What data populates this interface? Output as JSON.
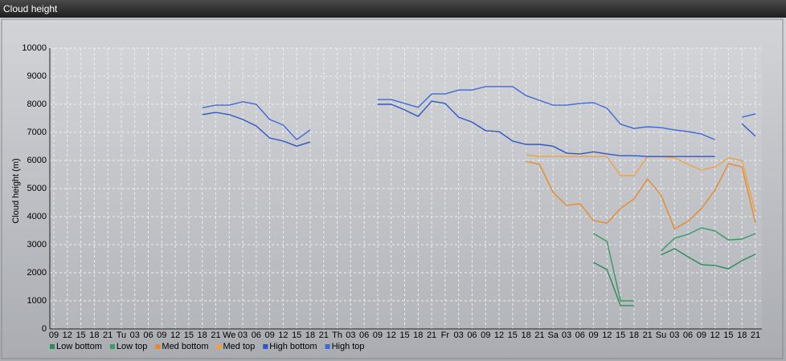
{
  "chart_data": {
    "type": "line",
    "title": "Cloud height",
    "y_label": "Cloud height (m)",
    "categories": [
      "09",
      "12",
      "15",
      "18",
      "21",
      "Tu",
      "03",
      "06",
      "09",
      "12",
      "15",
      "18",
      "21",
      "We",
      "03",
      "06",
      "09",
      "12",
      "15",
      "18",
      "21",
      "Th",
      "03",
      "06",
      "09",
      "12",
      "15",
      "18",
      "21",
      "Fr",
      "03",
      "06",
      "09",
      "12",
      "15",
      "18",
      "21",
      "Sa",
      "03",
      "06",
      "09",
      "12",
      "15",
      "18",
      "21",
      "Su",
      "03",
      "06",
      "09",
      "12",
      "15",
      "18",
      "21"
    ],
    "ylim": [
      0,
      10000
    ],
    "yticks": [
      0,
      1000,
      2000,
      3000,
      4000,
      5000,
      6000,
      7000,
      8000,
      9000,
      10000
    ],
    "grid": true,
    "series": [
      {
        "name": "Low bottom",
        "color": "#2f8a5a",
        "values": [
          null,
          null,
          null,
          null,
          null,
          null,
          null,
          null,
          null,
          null,
          null,
          null,
          null,
          null,
          null,
          null,
          null,
          null,
          null,
          null,
          null,
          null,
          null,
          null,
          null,
          null,
          null,
          null,
          null,
          null,
          null,
          null,
          null,
          null,
          null,
          null,
          null,
          null,
          null,
          null,
          2370,
          2110,
          830,
          830,
          null,
          2630,
          2860,
          2570,
          2290,
          2260,
          2140,
          2430,
          2660
        ]
      },
      {
        "name": "Low top",
        "color": "#3a9a68",
        "values": [
          null,
          null,
          null,
          null,
          null,
          null,
          null,
          null,
          null,
          null,
          null,
          null,
          null,
          null,
          null,
          null,
          null,
          null,
          null,
          null,
          null,
          null,
          null,
          null,
          null,
          null,
          null,
          null,
          null,
          null,
          null,
          null,
          null,
          null,
          null,
          null,
          null,
          null,
          null,
          null,
          3400,
          3110,
          1000,
          1000,
          null,
          2770,
          3230,
          3370,
          3600,
          3490,
          3170,
          3200,
          3400
        ]
      },
      {
        "name": "Med bottom",
        "color": "#e88a28",
        "values": [
          null,
          null,
          null,
          null,
          null,
          null,
          null,
          null,
          null,
          null,
          null,
          null,
          null,
          null,
          null,
          null,
          null,
          null,
          null,
          null,
          null,
          null,
          null,
          null,
          null,
          null,
          null,
          null,
          null,
          null,
          null,
          null,
          null,
          null,
          null,
          5970,
          5860,
          4860,
          4400,
          4460,
          3860,
          3770,
          4290,
          4630,
          5340,
          4770,
          3570,
          3830,
          4290,
          4940,
          5890,
          5770,
          3770
        ]
      },
      {
        "name": "Med top",
        "color": "#f0a040",
        "values": [
          null,
          null,
          null,
          null,
          null,
          null,
          null,
          null,
          null,
          null,
          null,
          null,
          null,
          null,
          null,
          null,
          null,
          null,
          null,
          null,
          null,
          null,
          null,
          null,
          null,
          null,
          null,
          null,
          null,
          null,
          null,
          null,
          null,
          null,
          null,
          6200,
          6140,
          6140,
          6140,
          6140,
          6140,
          6140,
          5460,
          5460,
          6140,
          6140,
          6090,
          5860,
          5660,
          5770,
          6090,
          6000,
          4140
        ]
      },
      {
        "name": "High bottom",
        "color": "#2f56c8",
        "values": [
          null,
          null,
          null,
          null,
          null,
          null,
          null,
          null,
          null,
          null,
          null,
          7630,
          7710,
          7630,
          7460,
          7230,
          6800,
          6690,
          6510,
          6660,
          null,
          null,
          null,
          null,
          8000,
          8000,
          7800,
          7570,
          8110,
          8030,
          7540,
          7370,
          7060,
          7030,
          6690,
          6570,
          6570,
          6510,
          6260,
          6230,
          6310,
          6230,
          6170,
          6170,
          6140,
          6140,
          6140,
          6140,
          6140,
          6140,
          null,
          7310,
          6860
        ]
      },
      {
        "name": "High top",
        "color": "#4068d8",
        "values": [
          null,
          null,
          null,
          null,
          null,
          null,
          null,
          null,
          null,
          null,
          null,
          7880,
          7970,
          7970,
          8090,
          8000,
          7460,
          7260,
          6740,
          7090,
          null,
          null,
          null,
          null,
          8170,
          8170,
          8030,
          7890,
          8370,
          8370,
          8510,
          8510,
          8630,
          8630,
          8630,
          8310,
          8140,
          7970,
          7970,
          8030,
          8060,
          7860,
          7290,
          7140,
          7200,
          7170,
          7090,
          7030,
          6940,
          6740,
          null,
          7540,
          7660
        ]
      }
    ]
  }
}
